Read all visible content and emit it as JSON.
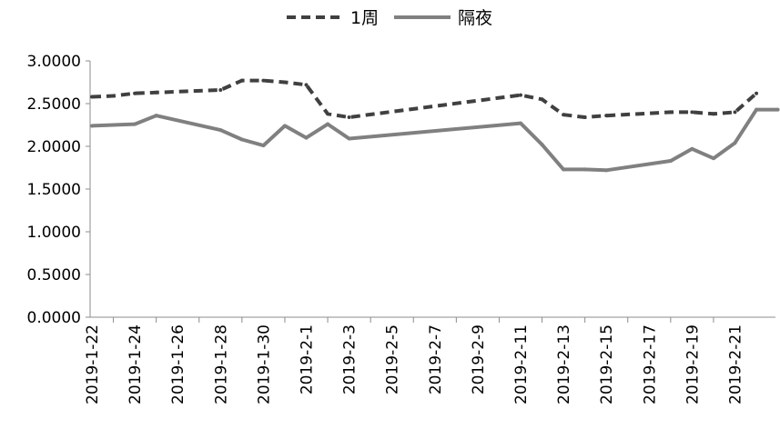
{
  "chart_data": {
    "type": "line",
    "title": "",
    "xlabel": "",
    "ylabel": "",
    "ylim": [
      0,
      3
    ],
    "yticks": [
      "0.0000",
      "0.5000",
      "1.0000",
      "1.5000",
      "2.0000",
      "2.5000",
      "3.0000"
    ],
    "xticks": [
      "2019-1-22",
      "2019-1-24",
      "2019-1-26",
      "2019-1-28",
      "2019-1-30",
      "2019-2-1",
      "2019-2-3",
      "2019-2-5",
      "2019-2-7",
      "2019-2-9",
      "2019-2-11",
      "2019-2-13",
      "2019-2-15",
      "2019-2-17",
      "2019-2-19",
      "2019-2-21"
    ],
    "legend_position": "top-center",
    "grid": false,
    "series": [
      {
        "name": "1周",
        "style": "dashed",
        "color": "#404040",
        "points": [
          [
            "2019-1-22",
            2.58
          ],
          [
            "2019-1-23",
            2.59
          ],
          [
            "2019-1-24",
            2.62
          ],
          [
            "2019-1-25",
            2.63
          ],
          [
            "2019-1-28",
            2.66
          ],
          [
            "2019-1-29",
            2.77
          ],
          [
            "2019-1-30",
            2.77
          ],
          [
            "2019-1-31",
            2.75
          ],
          [
            "2019-2-1",
            2.72
          ],
          [
            "2019-2-2",
            2.38
          ],
          [
            "2019-2-3",
            2.34
          ],
          [
            "2019-2-11",
            2.6
          ],
          [
            "2019-2-12",
            2.55
          ],
          [
            "2019-2-13",
            2.37
          ],
          [
            "2019-2-14",
            2.34
          ],
          [
            "2019-2-15",
            2.36
          ],
          [
            "2019-2-18",
            2.4
          ],
          [
            "2019-2-19",
            2.4
          ],
          [
            "2019-2-20",
            2.38
          ],
          [
            "2019-2-21",
            2.4
          ],
          [
            "2019-2-22",
            2.62
          ]
        ]
      },
      {
        "name": "隔夜",
        "style": "solid",
        "color": "#808080",
        "points": [
          [
            "2019-1-22",
            2.24
          ],
          [
            "2019-1-24",
            2.26
          ],
          [
            "2019-1-25",
            2.36
          ],
          [
            "2019-1-28",
            2.19
          ],
          [
            "2019-1-29",
            2.08
          ],
          [
            "2019-1-30",
            2.01
          ],
          [
            "2019-1-31",
            2.24
          ],
          [
            "2019-2-1",
            2.1
          ],
          [
            "2019-2-2",
            2.26
          ],
          [
            "2019-2-3",
            2.09
          ],
          [
            "2019-2-11",
            2.27
          ],
          [
            "2019-2-12",
            2.02
          ],
          [
            "2019-2-13",
            1.73
          ],
          [
            "2019-2-14",
            1.73
          ],
          [
            "2019-2-15",
            1.72
          ],
          [
            "2019-2-18",
            1.83
          ],
          [
            "2019-2-19",
            1.97
          ],
          [
            "2019-2-20",
            1.86
          ],
          [
            "2019-2-21",
            2.04
          ],
          [
            "2019-2-22",
            2.43
          ],
          [
            "2019-2-23",
            2.43
          ]
        ]
      }
    ]
  }
}
